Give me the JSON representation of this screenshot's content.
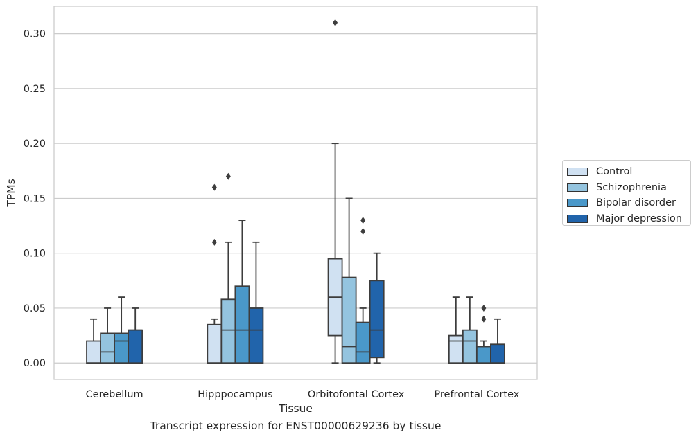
{
  "chart_data": {
    "type": "box",
    "xlabel": "Tissue",
    "ylabel": "TPMs",
    "ylim": [
      -0.015,
      0.325
    ],
    "yticks": [
      0.0,
      0.05,
      0.1,
      0.15,
      0.2,
      0.25,
      0.3
    ],
    "ytick_labels": [
      "0.00",
      "0.05",
      "0.10",
      "0.15",
      "0.20",
      "0.25",
      "0.30"
    ],
    "grid": "horizontal",
    "legend_position": "right",
    "categories": [
      "Cerebellum",
      "Hipppocampus",
      "Orbitofontal Cortex",
      "Prefrontal Cortex"
    ],
    "series": [
      {
        "name": "Control",
        "color": "#d0e1f2",
        "boxes": [
          {
            "whisker_low": 0.0,
            "q1": 0.0,
            "median": 0.0,
            "q3": 0.02,
            "whisker_high": 0.04,
            "outliers": []
          },
          {
            "whisker_low": 0.0,
            "q1": 0.0,
            "median": 0.0,
            "q3": 0.035,
            "whisker_high": 0.04,
            "outliers": [
              0.11,
              0.16
            ]
          },
          {
            "whisker_low": 0.0,
            "q1": 0.025,
            "median": 0.06,
            "q3": 0.095,
            "whisker_high": 0.2,
            "outliers": [
              0.31
            ]
          },
          {
            "whisker_low": 0.0,
            "q1": 0.0,
            "median": 0.02,
            "q3": 0.025,
            "whisker_high": 0.06,
            "outliers": []
          }
        ]
      },
      {
        "name": "Schizophrenia",
        "color": "#94c4df",
        "boxes": [
          {
            "whisker_low": 0.0,
            "q1": 0.0,
            "median": 0.01,
            "q3": 0.027,
            "whisker_high": 0.05,
            "outliers": []
          },
          {
            "whisker_low": 0.0,
            "q1": 0.0,
            "median": 0.03,
            "q3": 0.058,
            "whisker_high": 0.11,
            "outliers": [
              0.17
            ]
          },
          {
            "whisker_low": 0.0,
            "q1": 0.0,
            "median": 0.015,
            "q3": 0.078,
            "whisker_high": 0.15,
            "outliers": []
          },
          {
            "whisker_low": 0.0,
            "q1": 0.0,
            "median": 0.02,
            "q3": 0.03,
            "whisker_high": 0.06,
            "outliers": []
          }
        ]
      },
      {
        "name": "Bipolar disorder",
        "color": "#4a98c9",
        "boxes": [
          {
            "whisker_low": 0.0,
            "q1": 0.0,
            "median": 0.02,
            "q3": 0.027,
            "whisker_high": 0.06,
            "outliers": []
          },
          {
            "whisker_low": 0.0,
            "q1": 0.0,
            "median": 0.03,
            "q3": 0.07,
            "whisker_high": 0.13,
            "outliers": []
          },
          {
            "whisker_low": 0.0,
            "q1": 0.0,
            "median": 0.01,
            "q3": 0.037,
            "whisker_high": 0.05,
            "outliers": [
              0.12,
              0.13
            ]
          },
          {
            "whisker_low": 0.0,
            "q1": 0.0,
            "median": 0.015,
            "q3": 0.015,
            "whisker_high": 0.02,
            "outliers": [
              0.04,
              0.05
            ]
          }
        ]
      },
      {
        "name": "Major depression",
        "color": "#2164ab",
        "boxes": [
          {
            "whisker_low": 0.0,
            "q1": 0.0,
            "median": 0.03,
            "q3": 0.03,
            "whisker_high": 0.05,
            "outliers": []
          },
          {
            "whisker_low": 0.0,
            "q1": 0.0,
            "median": 0.03,
            "q3": 0.05,
            "whisker_high": 0.11,
            "outliers": []
          },
          {
            "whisker_low": 0.0,
            "q1": 0.005,
            "median": 0.03,
            "q3": 0.075,
            "whisker_high": 0.1,
            "outliers": []
          },
          {
            "whisker_low": 0.0,
            "q1": 0.0,
            "median": 0.0,
            "q3": 0.017,
            "whisker_high": 0.04,
            "outliers": []
          }
        ]
      }
    ]
  },
  "caption": "Transcript expression for ENST00000629236 by tissue"
}
